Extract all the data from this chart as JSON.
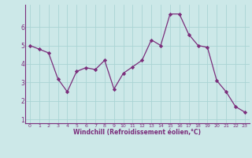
{
  "x": [
    0,
    1,
    2,
    3,
    4,
    5,
    6,
    7,
    8,
    9,
    10,
    11,
    12,
    13,
    14,
    15,
    16,
    17,
    18,
    19,
    20,
    21,
    22,
    23
  ],
  "y": [
    5.0,
    4.8,
    4.6,
    3.2,
    2.5,
    3.6,
    3.8,
    3.7,
    4.2,
    2.65,
    3.5,
    3.85,
    4.2,
    5.3,
    5.0,
    6.7,
    6.7,
    5.6,
    5.0,
    4.9,
    3.1,
    2.5,
    1.7,
    1.4
  ],
  "line_color": "#7B2D7B",
  "marker": "D",
  "marker_size": 2.2,
  "bg_color": "#cce8e8",
  "grid_color": "#aad4d4",
  "xlabel": "Windchill (Refroidissement éolien,°C)",
  "xlabel_color": "#7B2D7B",
  "tick_color": "#7B2D7B",
  "axis_color": "#7B2D7B",
  "xlim": [
    -0.5,
    23.5
  ],
  "ylim": [
    0.8,
    7.2
  ],
  "yticks": [
    1,
    2,
    3,
    4,
    5,
    6
  ],
  "xticks": [
    0,
    1,
    2,
    3,
    4,
    5,
    6,
    7,
    8,
    9,
    10,
    11,
    12,
    13,
    14,
    15,
    16,
    17,
    18,
    19,
    20,
    21,
    22,
    23
  ]
}
